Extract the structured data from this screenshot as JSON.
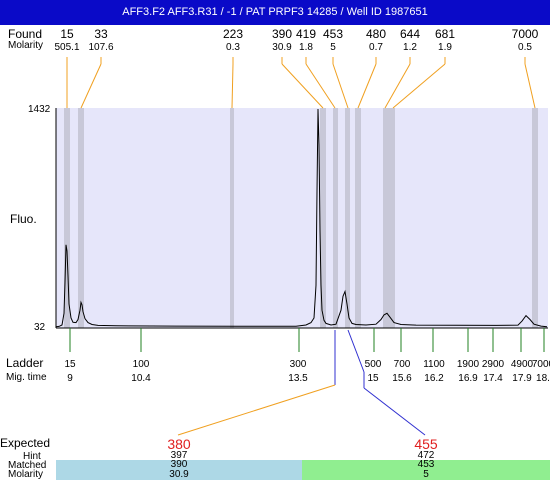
{
  "header": {
    "title": "AFF3.F2  AFF3.R31 / -1 / PAT PRPF3 14285 / Well ID 1987651"
  },
  "labels": {
    "found": "Found",
    "molarity": "Molarity",
    "fluo": "Fluo.",
    "ladder": "Ladder",
    "mig_time": "Mig. time",
    "expected": "Expected",
    "hint": "Hint",
    "matched": "Matched",
    "molarity_row": "Molarity"
  },
  "colors": {
    "title_bg": "#0a0ac8",
    "plot_bg": "#e6e6fa",
    "band": "#c8c8d8",
    "found_line": "#f0a020",
    "ladder_tick": "#208020",
    "expected_line": "#3030d0",
    "expected_text": "#e02020",
    "matched_left": "#add8e6",
    "matched_right": "#90ee90"
  },
  "chart_data": {
    "type": "line",
    "ylabel": "Fluo.",
    "y_ticks": [
      "1432",
      "32"
    ],
    "ylim": [
      32,
      1432
    ],
    "found_peaks": [
      {
        "size": "15",
        "molarity": "505.1"
      },
      {
        "size": "33",
        "molarity": "107.6"
      },
      {
        "size": "223",
        "molarity": "0.3"
      },
      {
        "size": "390",
        "molarity": "30.9"
      },
      {
        "size": "419",
        "molarity": "1.8"
      },
      {
        "size": "453",
        "molarity": "5"
      },
      {
        "size": "480",
        "molarity": "0.7"
      },
      {
        "size": "644",
        "molarity": "1.2"
      },
      {
        "size": "681",
        "molarity": "1.9"
      },
      {
        "size": "7000",
        "molarity": "0.5"
      }
    ],
    "ladder": [
      {
        "size": "15",
        "mig_time": "9"
      },
      {
        "size": "100",
        "mig_time": "10.4"
      },
      {
        "size": "300",
        "mig_time": "13.5"
      },
      {
        "size": "500",
        "mig_time": "15"
      },
      {
        "size": "700",
        "mig_time": "15.6"
      },
      {
        "size": "1100",
        "mig_time": "16.2"
      },
      {
        "size": "1900",
        "mig_time": "16.9"
      },
      {
        "size": "2900",
        "mig_time": "17.4"
      },
      {
        "size": "4900",
        "mig_time": "17.9"
      },
      {
        "size": "7000",
        "mig_time": "18."
      }
    ],
    "trace": [
      [
        0,
        34
      ],
      [
        3,
        36
      ],
      [
        6,
        45
      ],
      [
        8,
        120
      ],
      [
        9,
        320
      ],
      [
        10,
        560
      ],
      [
        11,
        520
      ],
      [
        12,
        360
      ],
      [
        13,
        180
      ],
      [
        15,
        90
      ],
      [
        17,
        62
      ],
      [
        20,
        60
      ],
      [
        22,
        80
      ],
      [
        24,
        140
      ],
      [
        25,
        190
      ],
      [
        26,
        175
      ],
      [
        27,
        130
      ],
      [
        29,
        85
      ],
      [
        32,
        60
      ],
      [
        36,
        48
      ],
      [
        42,
        42
      ],
      [
        60,
        40
      ],
      [
        120,
        38
      ],
      [
        180,
        37
      ],
      [
        240,
        37
      ],
      [
        250,
        45
      ],
      [
        255,
        60
      ],
      [
        258,
        90
      ],
      [
        260,
        300
      ],
      [
        261,
        900
      ],
      [
        262,
        1432
      ],
      [
        263,
        1200
      ],
      [
        264,
        650
      ],
      [
        265,
        300
      ],
      [
        266,
        140
      ],
      [
        268,
        75
      ],
      [
        270,
        55
      ],
      [
        275,
        45
      ],
      [
        280,
        50
      ],
      [
        285,
        140
      ],
      [
        287,
        230
      ],
      [
        289,
        260
      ],
      [
        291,
        180
      ],
      [
        293,
        90
      ],
      [
        296,
        55
      ],
      [
        300,
        48
      ],
      [
        310,
        45
      ],
      [
        320,
        50
      ],
      [
        325,
        80
      ],
      [
        328,
        110
      ],
      [
        331,
        120
      ],
      [
        334,
        95
      ],
      [
        338,
        60
      ],
      [
        345,
        48
      ],
      [
        360,
        44
      ],
      [
        400,
        43
      ],
      [
        440,
        42
      ],
      [
        462,
        44
      ],
      [
        466,
        70
      ],
      [
        470,
        105
      ],
      [
        474,
        80
      ],
      [
        478,
        50
      ],
      [
        485,
        38
      ],
      [
        491,
        34
      ]
    ],
    "expected": [
      {
        "value": "380",
        "hint": "397",
        "matched": "390",
        "molarity": "30.9"
      },
      {
        "value": "455",
        "hint": "472",
        "matched": "453",
        "molarity": "5"
      }
    ]
  }
}
